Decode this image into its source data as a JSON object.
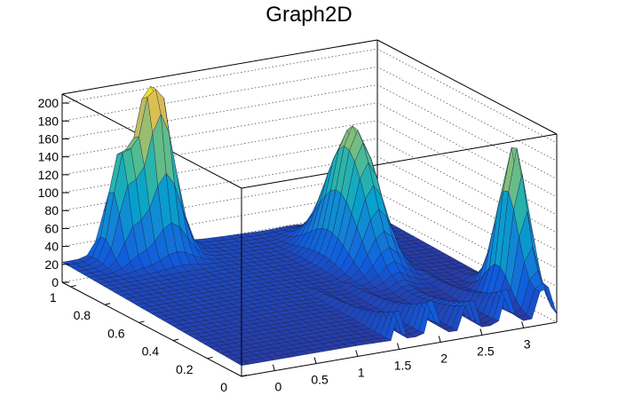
{
  "chart_data": {
    "type": "surface",
    "title": "Graph2D",
    "xlabel": "",
    "ylabel": "",
    "zlabel": "",
    "xlim": [
      -0.4,
      3.4
    ],
    "ylim": [
      0,
      1.05
    ],
    "zlim": [
      0,
      210
    ],
    "grid": true,
    "palette": "kBird",
    "x_ticks": [
      0,
      0.5,
      1,
      1.5,
      2,
      2.5,
      3
    ],
    "x_tick_labels": [
      "0",
      "0.5",
      "1",
      "1.5",
      "2",
      "2.5",
      "3"
    ],
    "y_ticks": [
      0,
      0.2,
      0.4,
      0.6,
      0.8,
      1
    ],
    "y_tick_labels": [
      "0",
      "0.2",
      "0.4",
      "0.6",
      "0.8",
      "1"
    ],
    "z_ticks": [
      0,
      20,
      40,
      60,
      80,
      100,
      120,
      140,
      160,
      180,
      200
    ],
    "z_tick_labels": [
      "0",
      "20",
      "40",
      "60",
      "80",
      "100",
      "120",
      "140",
      "160",
      "180",
      "200"
    ],
    "surface_features": {
      "background_level": 22,
      "peaks": [
        {
          "x": 0.6,
          "y": 1.0,
          "height": 205,
          "width_x": 0.18,
          "width_y": 0.06
        },
        {
          "x": 0.2,
          "y": 1.0,
          "height": 105,
          "width_x": 0.12,
          "width_y": 0.05
        },
        {
          "x": 3.3,
          "y": 0.2,
          "height": 160,
          "width_x": 0.12,
          "width_y": 0.07
        },
        {
          "x": 2.4,
          "y": 0.7,
          "height": 150,
          "width_x": 0.18,
          "width_y": 0.12
        }
      ]
    }
  }
}
